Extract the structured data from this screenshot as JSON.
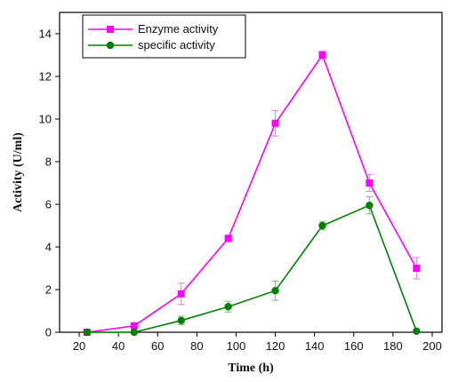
{
  "chart_data": {
    "type": "line",
    "xlabel": "Time (h)",
    "ylabel": "Activity (U/ml)",
    "xlim": [
      10,
      205
    ],
    "ylim": [
      0,
      15
    ],
    "xticks": [
      20,
      40,
      60,
      80,
      100,
      120,
      140,
      160,
      180,
      200
    ],
    "yticks": [
      0,
      2,
      4,
      6,
      8,
      10,
      12,
      14
    ],
    "legend_position": "top-left",
    "grid": false,
    "series": [
      {
        "name": "Enzyme activity",
        "color": "#ff00ff",
        "marker": "square",
        "x": [
          24,
          48,
          72,
          96,
          120,
          144,
          168,
          192
        ],
        "y": [
          0.0,
          0.3,
          1.8,
          4.4,
          9.8,
          13.0,
          7.0,
          3.0
        ],
        "err": [
          0.05,
          0.1,
          0.5,
          0.15,
          0.6,
          0.2,
          0.4,
          0.5
        ]
      },
      {
        "name": "specific activity",
        "color": "#008000",
        "marker": "circle",
        "x": [
          24,
          48,
          72,
          96,
          120,
          144,
          168,
          192
        ],
        "y": [
          0.0,
          0.0,
          0.55,
          1.2,
          1.95,
          5.0,
          5.95,
          0.05
        ],
        "err": [
          0.05,
          0.05,
          0.2,
          0.25,
          0.45,
          0.2,
          0.4,
          0.1
        ]
      }
    ]
  }
}
